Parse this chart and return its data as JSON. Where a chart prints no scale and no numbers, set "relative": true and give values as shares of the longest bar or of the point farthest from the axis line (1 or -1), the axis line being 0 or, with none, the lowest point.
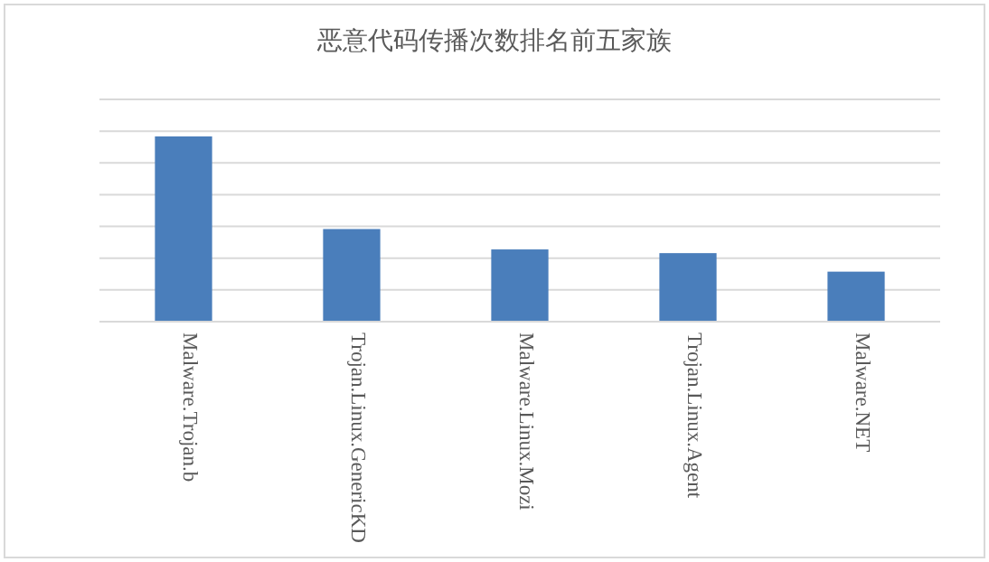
{
  "chart_data": {
    "type": "bar",
    "title": "恶意代码传播次数排名前五家族",
    "relative": true,
    "grid": "y",
    "categories": [
      "Malware.Trojan.b",
      "Trojan.Linux.GenericKD",
      "Malware.Linux.Mozi",
      "Trojan.Linux.Agent",
      "Malware.NET"
    ],
    "values": [
      1,
      0.5,
      0.39,
      0.37,
      0.27
    ],
    "color": "#4a7ebb"
  }
}
